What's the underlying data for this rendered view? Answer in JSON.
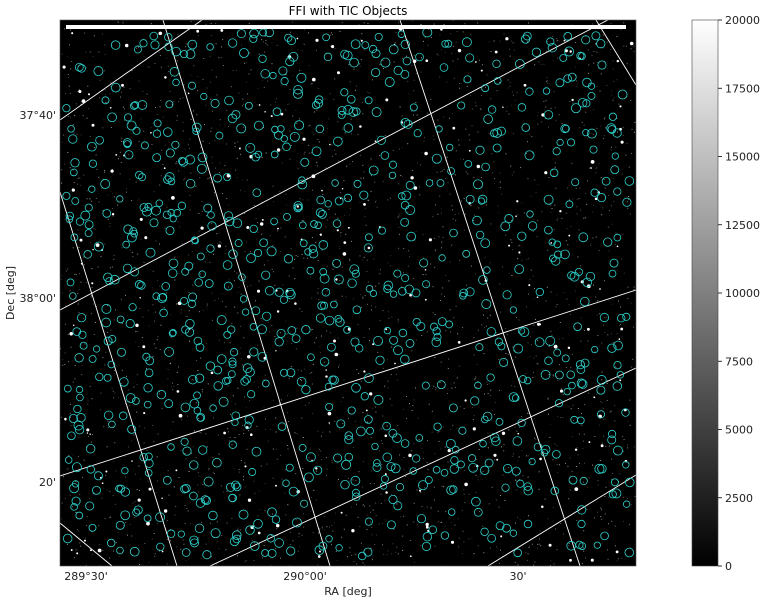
{
  "chart_data": {
    "type": "image",
    "title": "FFI with TIC Objects",
    "xlabel": "RA [deg]",
    "ylabel": "Dec [deg]",
    "x_ticks": [
      "289°30'",
      "290°00'",
      "30'"
    ],
    "y_ticks": [
      "37°40'",
      "38°00'",
      "20'"
    ],
    "colormap": "gray",
    "colorbar": {
      "range": [
        0,
        20000
      ],
      "ticks": [
        0,
        2500,
        5000,
        7500,
        10000,
        12500,
        15000,
        17500,
        20000
      ]
    },
    "overlay": {
      "name": "TIC Objects",
      "marker": "circle",
      "color": "#2fd4cf",
      "approx_count": 800
    },
    "background_color": "#000000",
    "grid_color": "#ffffff"
  }
}
